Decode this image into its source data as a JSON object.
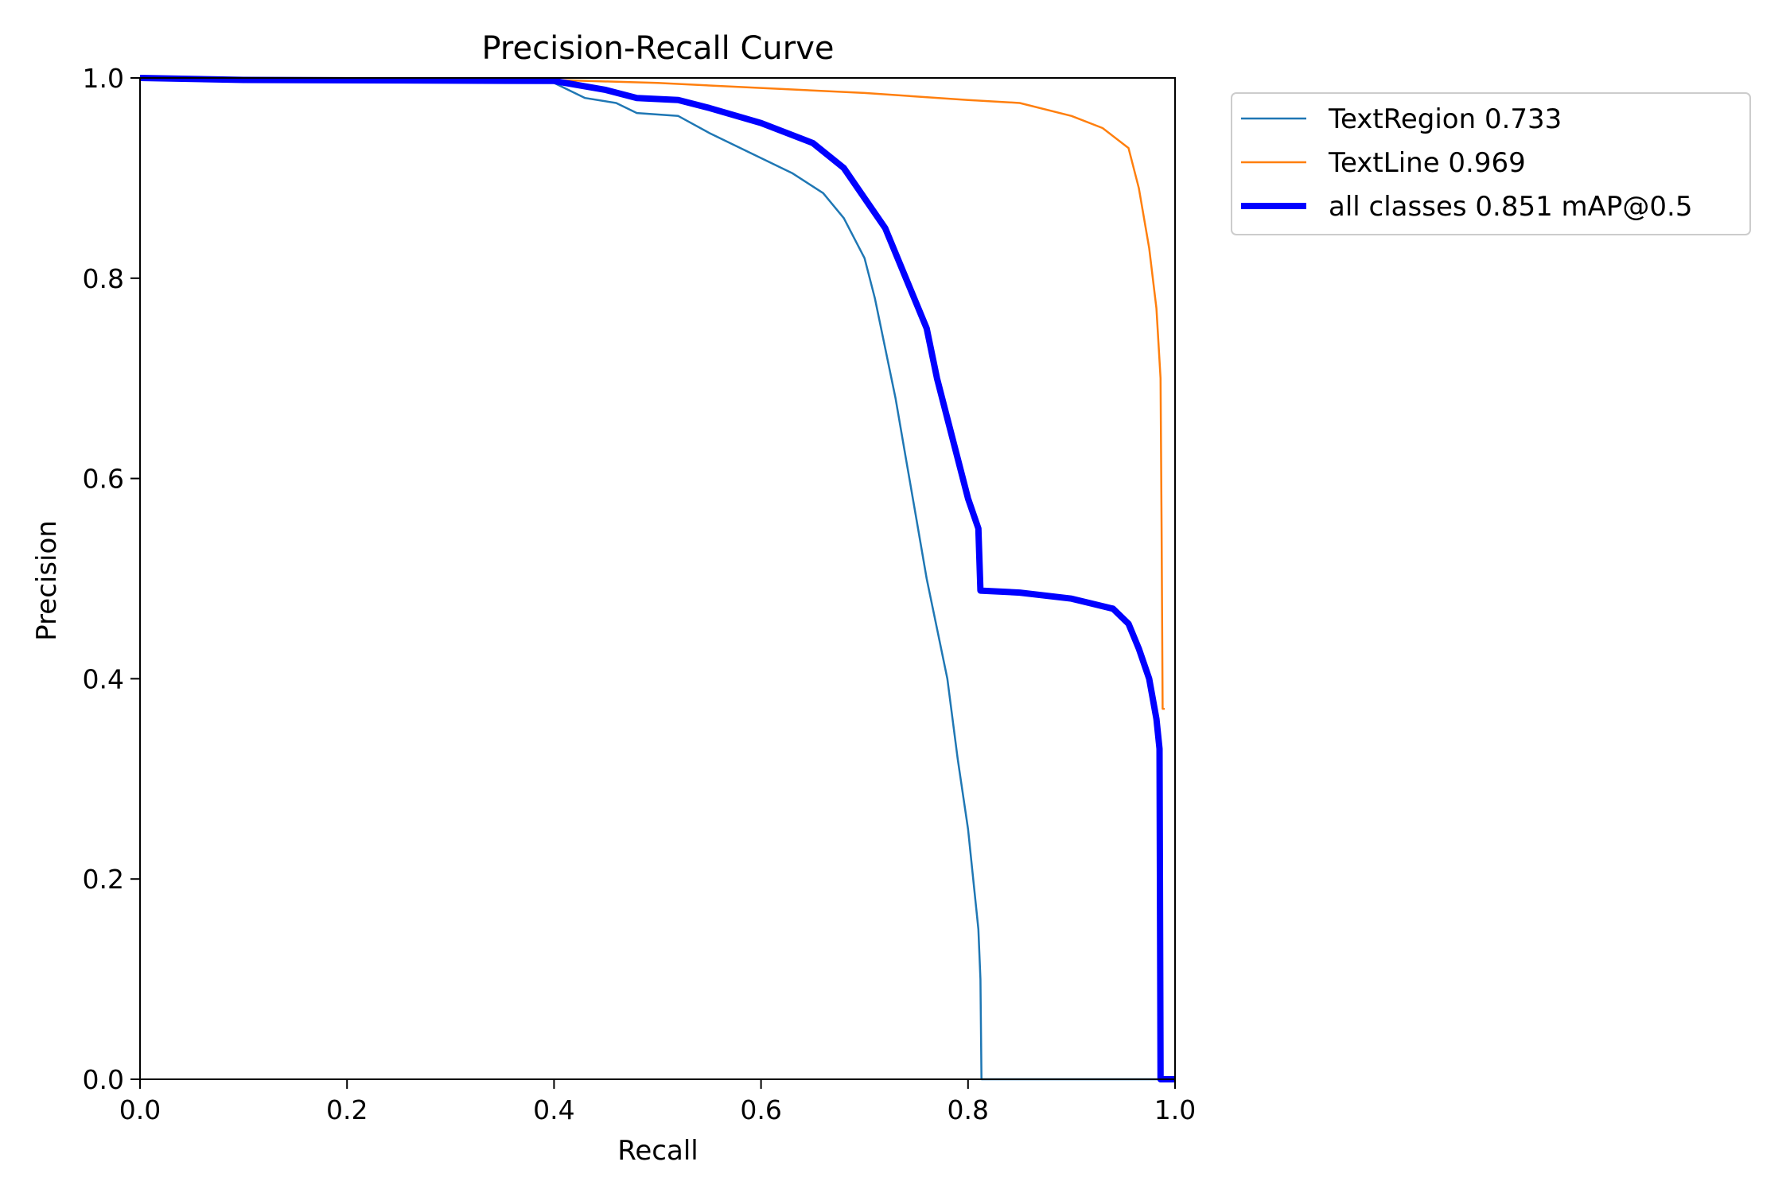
{
  "chart_data": {
    "type": "line",
    "title": "Precision-Recall Curve",
    "xlabel": "Recall",
    "ylabel": "Precision",
    "xlim": [
      0,
      1
    ],
    "ylim": [
      0,
      1
    ],
    "xticks": [
      "0.0",
      "0.2",
      "0.4",
      "0.6",
      "0.8",
      "1.0"
    ],
    "yticks": [
      "0.0",
      "0.2",
      "0.4",
      "0.6",
      "0.8",
      "1.0"
    ],
    "grid": false,
    "legend_position": "outside-top-right",
    "series": [
      {
        "name": "TextRegion 0.733",
        "color": "#1f77b4",
        "width": "thin",
        "points": [
          [
            0.0,
            1.0
          ],
          [
            0.1,
            0.999
          ],
          [
            0.3,
            0.998
          ],
          [
            0.4,
            0.995
          ],
          [
            0.43,
            0.98
          ],
          [
            0.46,
            0.975
          ],
          [
            0.48,
            0.965
          ],
          [
            0.52,
            0.962
          ],
          [
            0.55,
            0.945
          ],
          [
            0.6,
            0.92
          ],
          [
            0.63,
            0.905
          ],
          [
            0.66,
            0.885
          ],
          [
            0.68,
            0.86
          ],
          [
            0.7,
            0.82
          ],
          [
            0.71,
            0.78
          ],
          [
            0.72,
            0.73
          ],
          [
            0.73,
            0.68
          ],
          [
            0.74,
            0.62
          ],
          [
            0.75,
            0.56
          ],
          [
            0.76,
            0.5
          ],
          [
            0.77,
            0.45
          ],
          [
            0.78,
            0.4
          ],
          [
            0.79,
            0.32
          ],
          [
            0.8,
            0.25
          ],
          [
            0.805,
            0.2
          ],
          [
            0.81,
            0.15
          ],
          [
            0.812,
            0.1
          ],
          [
            0.813,
            0.0
          ],
          [
            1.0,
            0.0
          ]
        ]
      },
      {
        "name": "TextLine 0.969",
        "color": "#ff7f0e",
        "width": "thin",
        "points": [
          [
            0.0,
            1.0
          ],
          [
            0.4,
            0.998
          ],
          [
            0.5,
            0.995
          ],
          [
            0.6,
            0.99
          ],
          [
            0.7,
            0.985
          ],
          [
            0.8,
            0.978
          ],
          [
            0.85,
            0.975
          ],
          [
            0.9,
            0.962
          ],
          [
            0.93,
            0.95
          ],
          [
            0.955,
            0.93
          ],
          [
            0.965,
            0.89
          ],
          [
            0.975,
            0.83
          ],
          [
            0.982,
            0.77
          ],
          [
            0.986,
            0.7
          ],
          [
            0.987,
            0.55
          ],
          [
            0.988,
            0.37
          ],
          [
            0.99,
            0.37
          ]
        ]
      },
      {
        "name": "all classes 0.851 mAP@0.5",
        "color": "#0000ff",
        "width": "thick",
        "points": [
          [
            0.0,
            1.0
          ],
          [
            0.1,
            0.998
          ],
          [
            0.4,
            0.997
          ],
          [
            0.45,
            0.988
          ],
          [
            0.48,
            0.98
          ],
          [
            0.52,
            0.978
          ],
          [
            0.55,
            0.97
          ],
          [
            0.6,
            0.955
          ],
          [
            0.65,
            0.935
          ],
          [
            0.68,
            0.91
          ],
          [
            0.7,
            0.88
          ],
          [
            0.72,
            0.85
          ],
          [
            0.74,
            0.8
          ],
          [
            0.76,
            0.75
          ],
          [
            0.77,
            0.7
          ],
          [
            0.78,
            0.66
          ],
          [
            0.79,
            0.62
          ],
          [
            0.8,
            0.58
          ],
          [
            0.81,
            0.55
          ],
          [
            0.812,
            0.488
          ],
          [
            0.85,
            0.486
          ],
          [
            0.9,
            0.48
          ],
          [
            0.94,
            0.47
          ],
          [
            0.955,
            0.455
          ],
          [
            0.965,
            0.43
          ],
          [
            0.975,
            0.4
          ],
          [
            0.982,
            0.36
          ],
          [
            0.985,
            0.33
          ],
          [
            0.986,
            0.0
          ],
          [
            1.0,
            0.0
          ]
        ]
      }
    ]
  }
}
